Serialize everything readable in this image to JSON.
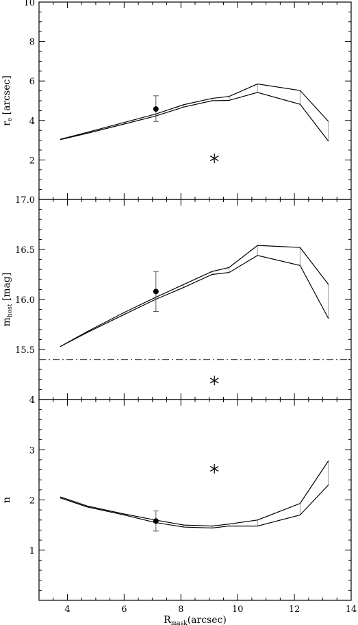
{
  "chart_data": [
    {
      "type": "line",
      "panel": "top",
      "ylabel_main": "r",
      "ylabel_sub": "e",
      "ylabel_unit": " [arcsec]",
      "xlim": [
        3,
        14
      ],
      "ylim": [
        0,
        10
      ],
      "yticks": [
        2,
        4,
        6,
        8,
        10
      ],
      "yminor": 0.5,
      "x": [
        3.75,
        4.7,
        6.0,
        7.1,
        8.1,
        9.1,
        9.7,
        10.7,
        12.2,
        13.2
      ],
      "series": [
        {
          "values": [
            3.05,
            3.4,
            3.9,
            4.32,
            4.8,
            5.12,
            5.22,
            5.85,
            5.52,
            3.95
          ]
        },
        {
          "values": [
            3.03,
            3.35,
            3.82,
            4.22,
            4.68,
            5.0,
            5.02,
            5.42,
            4.82,
            2.95
          ]
        }
      ],
      "points": [
        {
          "x": 7.12,
          "y": 4.58,
          "yerr": [
            3.95,
            5.25
          ]
        }
      ],
      "stars": [
        {
          "x": 9.18,
          "y": 2.08
        }
      ],
      "hlines": []
    },
    {
      "type": "line",
      "panel": "middle",
      "ylabel_main": "m",
      "ylabel_sub": "host",
      "ylabel_unit": " [mag]",
      "xlim": [
        3,
        14
      ],
      "ylim": [
        15.0,
        17.0
      ],
      "yticks": [
        15.5,
        16.0,
        16.5,
        17.0
      ],
      "ytick_labels": [
        "15.5",
        "16.0",
        "16.5",
        "17.0"
      ],
      "yminor": 0.1,
      "x": [
        3.75,
        4.7,
        6.0,
        7.1,
        8.1,
        9.1,
        9.7,
        10.7,
        12.2,
        13.2
      ],
      "series": [
        {
          "values": [
            15.53,
            15.68,
            15.87,
            16.02,
            16.15,
            16.28,
            16.32,
            16.54,
            16.52,
            16.15
          ]
        },
        {
          "values": [
            15.53,
            15.67,
            15.85,
            16.0,
            16.12,
            16.25,
            16.27,
            16.44,
            16.34,
            15.81
          ]
        }
      ],
      "points": [
        {
          "x": 7.12,
          "y": 16.08,
          "yerr": [
            15.88,
            16.28
          ]
        }
      ],
      "stars": [
        {
          "x": 9.18,
          "y": 15.19
        }
      ],
      "hlines": [
        {
          "y": 15.4,
          "style": "dash-dot"
        }
      ]
    },
    {
      "type": "line",
      "panel": "bottom",
      "ylabel_main": "n",
      "ylabel_sub": "",
      "ylabel_unit": "",
      "xlim": [
        3,
        14
      ],
      "ylim": [
        0,
        4
      ],
      "yticks": [
        1,
        2,
        3,
        4
      ],
      "yminor": 0.2,
      "xticks": [
        4,
        6,
        8,
        10,
        12,
        14
      ],
      "xminor": 0.5,
      "xlabel_main": "R",
      "xlabel_sub": "mask",
      "xlabel_unit": "(arcsec)",
      "x": [
        3.75,
        4.7,
        6.0,
        7.1,
        8.1,
        9.1,
        9.7,
        10.7,
        12.2,
        13.2
      ],
      "series": [
        {
          "values": [
            2.06,
            1.88,
            1.72,
            1.6,
            1.5,
            1.48,
            1.52,
            1.6,
            1.93,
            2.78
          ]
        },
        {
          "values": [
            2.04,
            1.86,
            1.7,
            1.55,
            1.46,
            1.44,
            1.48,
            1.48,
            1.7,
            2.3
          ]
        }
      ],
      "points": [
        {
          "x": 7.12,
          "y": 1.58,
          "yerr": [
            1.38,
            1.78
          ]
        }
      ],
      "stars": [
        {
          "x": 9.18,
          "y": 2.62
        }
      ],
      "hlines": []
    }
  ],
  "colors": {
    "line": "#000000",
    "connector": "#9a9a9a",
    "hline": "#555555"
  }
}
